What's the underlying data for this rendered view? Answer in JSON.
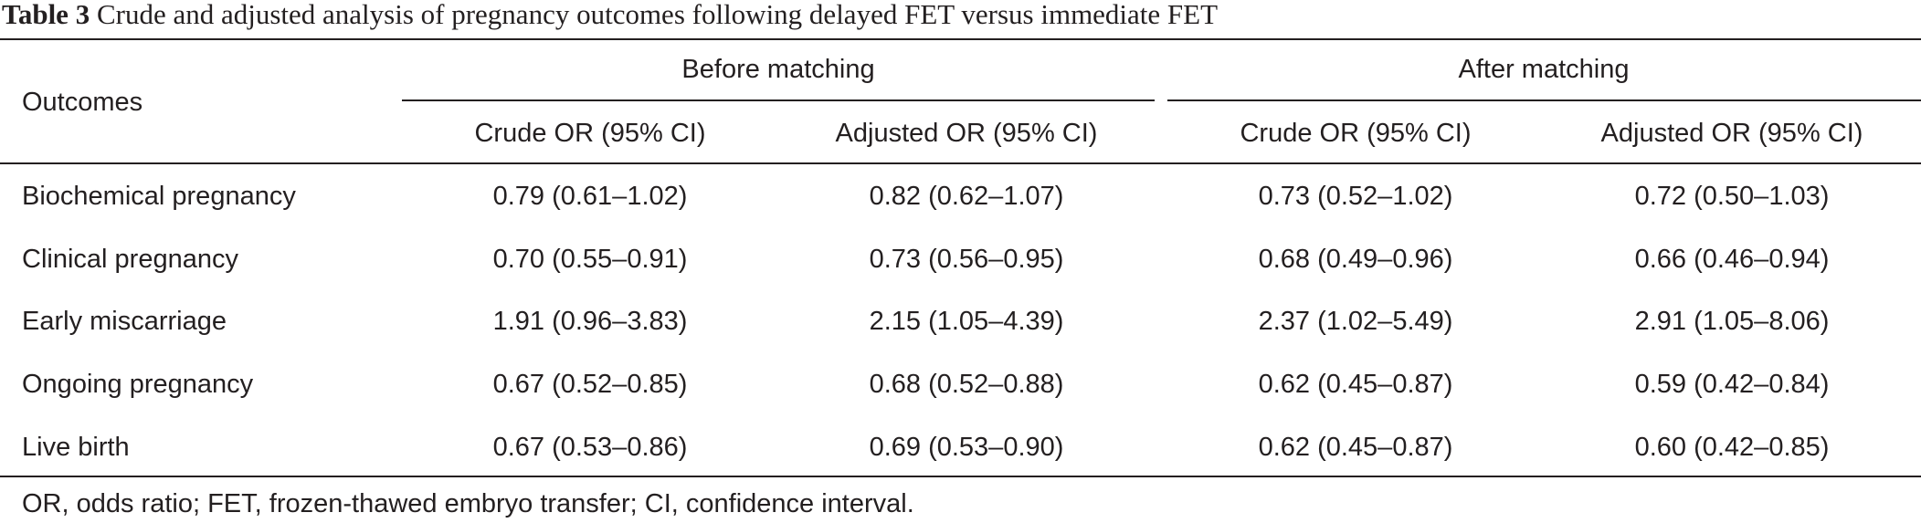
{
  "table": {
    "label": "Table 3",
    "caption": "Crude and adjusted analysis of pregnancy outcomes following delayed FET versus immediate FET",
    "row_header": "Outcomes",
    "groups": [
      {
        "label": "Before matching"
      },
      {
        "label": "After matching"
      }
    ],
    "columns": [
      {
        "label": "Crude OR (95% CI)"
      },
      {
        "label": "Adjusted OR (95% CI)"
      },
      {
        "label": "Crude OR (95% CI)"
      },
      {
        "label": "Adjusted OR (95% CI)"
      }
    ],
    "rows": [
      {
        "label": "Biochemical pregnancy",
        "values": [
          "0.79 (0.61–1.02)",
          "0.82 (0.62–1.07)",
          "0.73 (0.52–1.02)",
          "0.72 (0.50–1.03)"
        ]
      },
      {
        "label": "Clinical pregnancy",
        "values": [
          "0.70 (0.55–0.91)",
          "0.73 (0.56–0.95)",
          "0.68 (0.49–0.96)",
          "0.66 (0.46–0.94)"
        ]
      },
      {
        "label": "Early miscarriage",
        "values": [
          "1.91 (0.96–3.83)",
          "2.15 (1.05–4.39)",
          "2.37 (1.02–5.49)",
          "2.91 (1.05–8.06)"
        ]
      },
      {
        "label": "Ongoing pregnancy",
        "values": [
          "0.67 (0.52–0.85)",
          "0.68 (0.52–0.88)",
          "0.62 (0.45–0.87)",
          "0.59 (0.42–0.84)"
        ]
      },
      {
        "label": "Live birth",
        "values": [
          "0.67 (0.53–0.86)",
          "0.69 (0.53–0.90)",
          "0.62 (0.45–0.87)",
          "0.60 (0.42–0.85)"
        ]
      }
    ],
    "footnote": "OR, odds ratio; FET, frozen-thawed embryo transfer; CI, confidence interval."
  }
}
